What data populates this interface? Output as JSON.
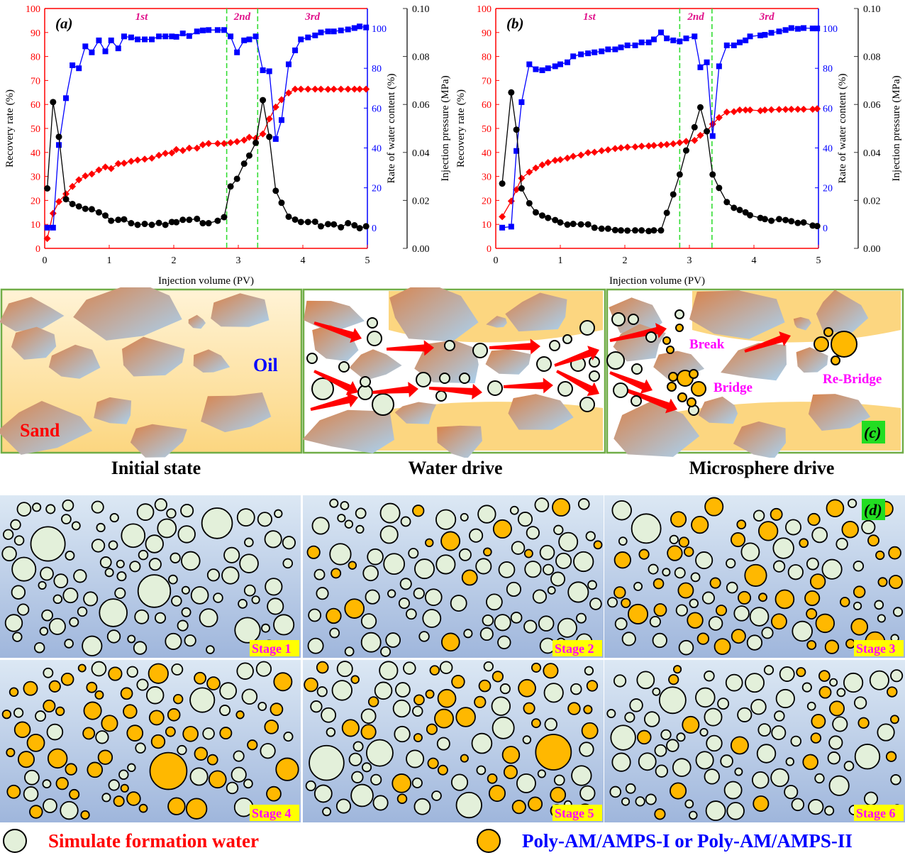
{
  "chart_data": [
    {
      "panel_label": "(a)",
      "type": "line",
      "xlabel": "Injection volume (PV)",
      "ylabel_left": "Recovery rate (%)",
      "ylabel_right1": "Rate of water content (%)",
      "ylabel_right2": "Injection pressure (MPa)",
      "xlim": [
        0,
        5
      ],
      "ylim_left": [
        0,
        100
      ],
      "ylim_right1": [
        -10.4,
        110
      ],
      "ylim_right2": [
        0,
        0.1
      ],
      "xticks": [
        "0",
        "1",
        "2",
        "3",
        "4",
        "5"
      ],
      "yticks_left": [
        "0",
        "10",
        "20",
        "30",
        "40",
        "50",
        "60",
        "70",
        "80",
        "90",
        "100"
      ],
      "yticks_right1": [
        "0",
        "20",
        "40",
        "60",
        "80",
        "100"
      ],
      "yticks_right2": [
        "0.00",
        "0.02",
        "0.04",
        "0.06",
        "0.08",
        "0.10"
      ],
      "phases": [
        {
          "label": "1st",
          "x": 1.5
        },
        {
          "label": "2nd",
          "x": 3.06
        },
        {
          "label": "3rd",
          "x": 4.15
        }
      ],
      "phase_boundaries": [
        2.82,
        3.3
      ],
      "colors": {
        "recovery": "#ff0000",
        "water": "#0000ff",
        "pressure": "#000000",
        "boundary": "#33dd33",
        "phase": "#e0108a"
      },
      "x": [
        0.04,
        0.13,
        0.22,
        0.33,
        0.43,
        0.53,
        0.63,
        0.73,
        0.84,
        0.94,
        1.03,
        1.14,
        1.23,
        1.34,
        1.44,
        1.55,
        1.66,
        1.77,
        1.87,
        1.97,
        2.04,
        2.14,
        2.24,
        2.36,
        2.45,
        2.54,
        2.68,
        2.78,
        2.88,
        2.98,
        3.09,
        3.17,
        3.27,
        3.38,
        3.48,
        3.58,
        3.67,
        3.78,
        3.88,
        3.97,
        4.08,
        4.19,
        4.28,
        4.39,
        4.48,
        4.59,
        4.7,
        4.8,
        4.88,
        4.98
      ],
      "series": [
        {
          "key": "recovery",
          "axis": "left",
          "values": [
            4.1,
            14.6,
            19.5,
            22.7,
            25.8,
            28.6,
            30.2,
            31,
            32.7,
            33.9,
            33.3,
            35.3,
            35.5,
            36.3,
            36.8,
            37.2,
            37.6,
            38.8,
            39.6,
            39.8,
            41.2,
            40.8,
            41.8,
            41.8,
            43.2,
            43.7,
            43.7,
            43.7,
            44.1,
            44.5,
            45.1,
            46.3,
            45.9,
            47.7,
            54,
            58.9,
            62,
            64.8,
            66.4,
            66.4,
            66.4,
            66.4,
            66.4,
            66.3,
            66.4,
            66.4,
            66.4,
            66.4,
            66.4,
            66.4
          ]
        },
        {
          "key": "water",
          "axis": "right1",
          "values": [
            0,
            0,
            41.5,
            65,
            81.5,
            80,
            91,
            88,
            94,
            88.5,
            94,
            90,
            96,
            95.5,
            94.5,
            94.5,
            94.5,
            96,
            96,
            96,
            95.8,
            97.5,
            96.2,
            98.5,
            99,
            99.2,
            99.2,
            99.2,
            96,
            88,
            94,
            94.5,
            96,
            79,
            78.5,
            44.5,
            54,
            82,
            89,
            94.5,
            95.5,
            96.5,
            98,
            98.5,
            98.5,
            99,
            99.5,
            100.2,
            101,
            100.5
          ]
        },
        {
          "key": "pressure",
          "axis": "right2",
          "values": [
            0.025,
            0.061,
            0.0465,
            0.0205,
            0.0185,
            0.0175,
            0.0165,
            0.0163,
            0.015,
            0.0137,
            0.0115,
            0.0119,
            0.0121,
            0.0105,
            0.0098,
            0.0102,
            0.0098,
            0.0106,
            0.0098,
            0.011,
            0.0109,
            0.0119,
            0.0119,
            0.0123,
            0.0105,
            0.0105,
            0.0115,
            0.013,
            0.0258,
            0.029,
            0.0353,
            0.0387,
            0.044,
            0.0618,
            0.0465,
            0.024,
            0.019,
            0.0132,
            0.012,
            0.011,
            0.011,
            0.0111,
            0.0092,
            0.0101,
            0.01,
            0.0088,
            0.0105,
            0.0096,
            0.0084,
            0.0092
          ]
        }
      ]
    },
    {
      "panel_label": "(b)",
      "type": "line",
      "xlabel": "Injection volume (PV)",
      "ylabel_left": "Recovery rate (%)",
      "ylabel_right1": "Rate of water content (%)",
      "ylabel_right2": "Injection pressure (MPa)",
      "xlim": [
        0,
        5
      ],
      "ylim_left": [
        0,
        100
      ],
      "ylim_right1": [
        -10.4,
        110
      ],
      "ylim_right2": [
        0,
        0.1
      ],
      "xticks": [
        "0",
        "1",
        "2",
        "3",
        "4",
        "5"
      ],
      "yticks_left": [
        "0",
        "10",
        "20",
        "30",
        "40",
        "50",
        "60",
        "70",
        "80",
        "90",
        "100"
      ],
      "yticks_right1": [
        "0",
        "20",
        "40",
        "60",
        "80",
        "100"
      ],
      "yticks_right2": [
        "0.00",
        "0.02",
        "0.04",
        "0.06",
        "0.08",
        "0.10"
      ],
      "phases": [
        {
          "label": "1st",
          "x": 1.45
        },
        {
          "label": "2nd",
          "x": 3.1
        },
        {
          "label": "3rd",
          "x": 4.2
        }
      ],
      "phase_boundaries": [
        2.85,
        3.35
      ],
      "colors": {
        "recovery": "#ff0000",
        "water": "#0000ff",
        "pressure": "#000000",
        "boundary": "#33dd33",
        "phase": "#e0108a"
      },
      "x": [
        0.1,
        0.24,
        0.32,
        0.4,
        0.52,
        0.62,
        0.72,
        0.81,
        0.92,
        1.0,
        1.11,
        1.2,
        1.32,
        1.43,
        1.53,
        1.64,
        1.74,
        1.85,
        1.94,
        2.04,
        2.16,
        2.26,
        2.37,
        2.45,
        2.56,
        2.65,
        2.75,
        2.85,
        2.95,
        3.08,
        3.17,
        3.27,
        3.36,
        3.46,
        3.58,
        3.69,
        3.78,
        3.87,
        3.94,
        4.1,
        4.17,
        4.27,
        4.39,
        4.49,
        4.58,
        4.68,
        4.77,
        4.91,
        4.98
      ],
      "series": [
        {
          "key": "recovery",
          "axis": "left",
          "values": [
            13.2,
            19.7,
            24.5,
            29.2,
            31.8,
            33.5,
            34.8,
            35.8,
            36.7,
            37,
            37.6,
            38.4,
            38.9,
            39.9,
            40.1,
            40.7,
            41.1,
            41.6,
            41.9,
            42.2,
            42.3,
            42.6,
            42.7,
            42.9,
            43.1,
            43.3,
            43.6,
            44.1,
            44.6,
            45,
            47.1,
            48.8,
            51.8,
            54.5,
            56.8,
            57,
            57.7,
            57.7,
            57.7,
            57.4,
            57.7,
            57.8,
            57.9,
            57.9,
            58,
            58,
            58,
            58,
            58.2
          ]
        },
        {
          "key": "water",
          "axis": "right1",
          "values": [
            0,
            0.5,
            38.5,
            63,
            82,
            79.5,
            79,
            80,
            81,
            82,
            83,
            86,
            87,
            87.5,
            88,
            88.5,
            89.5,
            89.5,
            90.5,
            91.5,
            91.5,
            93,
            93,
            94.5,
            98,
            95,
            94,
            93.5,
            95,
            96,
            80.5,
            83,
            46,
            81,
            91.5,
            91.5,
            93,
            94,
            96,
            96.5,
            96.8,
            97.8,
            98.5,
            99.2,
            100.2,
            99.8,
            100.2,
            100,
            100
          ]
        },
        {
          "key": "pressure",
          "axis": "right2",
          "values": [
            0.027,
            0.065,
            0.0495,
            0.025,
            0.0188,
            0.015,
            0.0137,
            0.0127,
            0.0118,
            0.0108,
            0.0099,
            0.0102,
            0.01,
            0.01,
            0.0086,
            0.0082,
            0.0082,
            0.0076,
            0.0075,
            0.0074,
            0.0075,
            0.0075,
            0.0072,
            0.0075,
            0.0075,
            0.0148,
            0.0225,
            0.0308,
            0.0408,
            0.0505,
            0.0588,
            0.0488,
            0.0308,
            0.0252,
            0.0193,
            0.0169,
            0.016,
            0.015,
            0.0138,
            0.0127,
            0.0122,
            0.0115,
            0.0122,
            0.0118,
            0.0113,
            0.0106,
            0.0108,
            0.0095,
            0.0093
          ]
        }
      ]
    }
  ],
  "panel_c": {
    "label": "(c)",
    "stages": [
      {
        "caption": "Initial state",
        "labels": {
          "oil": "Oil",
          "sand": "Sand"
        }
      },
      {
        "caption": "Water drive"
      },
      {
        "caption": "Microsphere drive",
        "labels": {
          "break": "Break",
          "bridge": "Bridge",
          "rebridge": "Re-Bridge"
        }
      }
    ],
    "colors": {
      "oil": "#fcd680",
      "arrow": "#ff0000",
      "water_sphere": "#e3f0da",
      "microsphere": "#ffb800",
      "label_magenta": "#ff00ff",
      "label_oil": "#0000ff",
      "label_sand": "#ff0000",
      "frame": "#70ad47"
    }
  },
  "panel_d": {
    "label": "(d)",
    "stages": [
      "Stage 1",
      "Stage 2",
      "Stage 3",
      "Stage 4",
      "Stage 5",
      "Stage 6"
    ],
    "colors": {
      "stage_badge_bg": "#ffff00",
      "stage_badge_text": "#ff00ff",
      "label_badge_bg": "#22dd22"
    }
  },
  "legend": {
    "items": [
      {
        "label": "Simulate formation water",
        "color": "#e3f0da",
        "text_color": "#ff0000"
      },
      {
        "label": "Poly-AM/AMPS-I or Poly-AM/AMPS-II",
        "color": "#ffb800",
        "text_color": "#0000ff"
      }
    ]
  }
}
